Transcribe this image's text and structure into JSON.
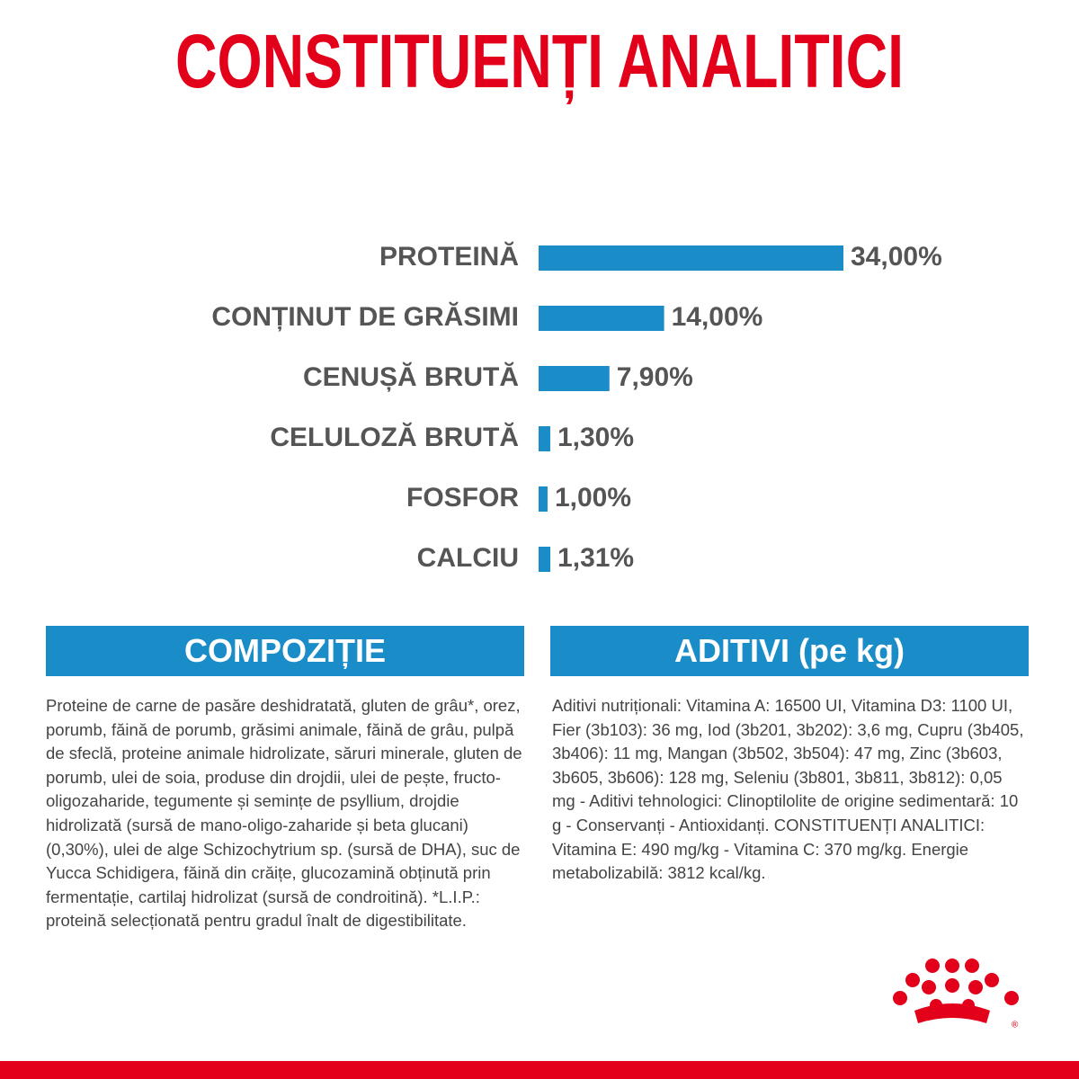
{
  "chart_data": {
    "type": "bar",
    "orientation": "horizontal",
    "title": "CONSTITUENȚI ANALITICI",
    "categories": [
      "PROTEINĂ",
      "CONȚINUT DE GRĂSIMI",
      "CENUȘĂ BRUTĂ",
      "CELULOZĂ BRUTĂ",
      "FOSFOR",
      "CALCIU"
    ],
    "values": [
      34,
      14,
      7.9,
      1.3,
      1.0,
      1.31
    ],
    "value_labels": [
      "34,00%",
      "14,00%",
      "7,90%",
      "1,30%",
      "1,00%",
      "1,31%"
    ],
    "color": "#1a8cc8"
  },
  "composition": {
    "title": "COMPOZIȚIE",
    "text": "Proteine de carne de pasăre deshidratată, gluten de grâu*, orez, porumb, făină de porumb, grăsimi animale, făină de grâu, pulpă de sfeclă, proteine animale hidrolizate, săruri minerale, gluten de porumb, ulei de soia, produse din drojdii, ulei de pește, fructo-oligozaharide, tegumente și semințe de psyllium, drojdie hidrolizată (sursă de mano-oligo-zaharide și beta glucani) (0,30%), ulei de alge Schizochytrium sp. (sursă de DHA), suc de Yucca Schidigera, făină din crăițe, glucozamină obținută prin fermentație, cartilaj hidrolizat (sursă de condroitină). *L.I.P.: proteină selecționată pentru gradul înalt de digestibilitate."
  },
  "additives": {
    "title": "ADITIVI (pe kg)",
    "text": "Aditivi nutriționali: Vitamina A: 16500 UI, Vitamina D3: 1100 UI, Fier (3b103): 36 mg, Iod (3b201, 3b202): 3,6 mg, Cupru (3b405, 3b406): 11 mg, Mangan (3b502, 3b504): 47 mg, Zinc (3b603, 3b605, 3b606): 128 mg, Seleniu (3b801, 3b811, 3b812): 0,05 mg - Aditivi tehnologici: Clinoptilolite de origine sedimentară: 10 g - Conservanți - Antioxidanți. CONSTITUENȚI ANALITICI: Vitamina E: 490 mg/kg - Vitamina C: 370 mg/kg. Energie metabolizabilă: 3812 kcal/kg."
  },
  "logo_mark": "®"
}
